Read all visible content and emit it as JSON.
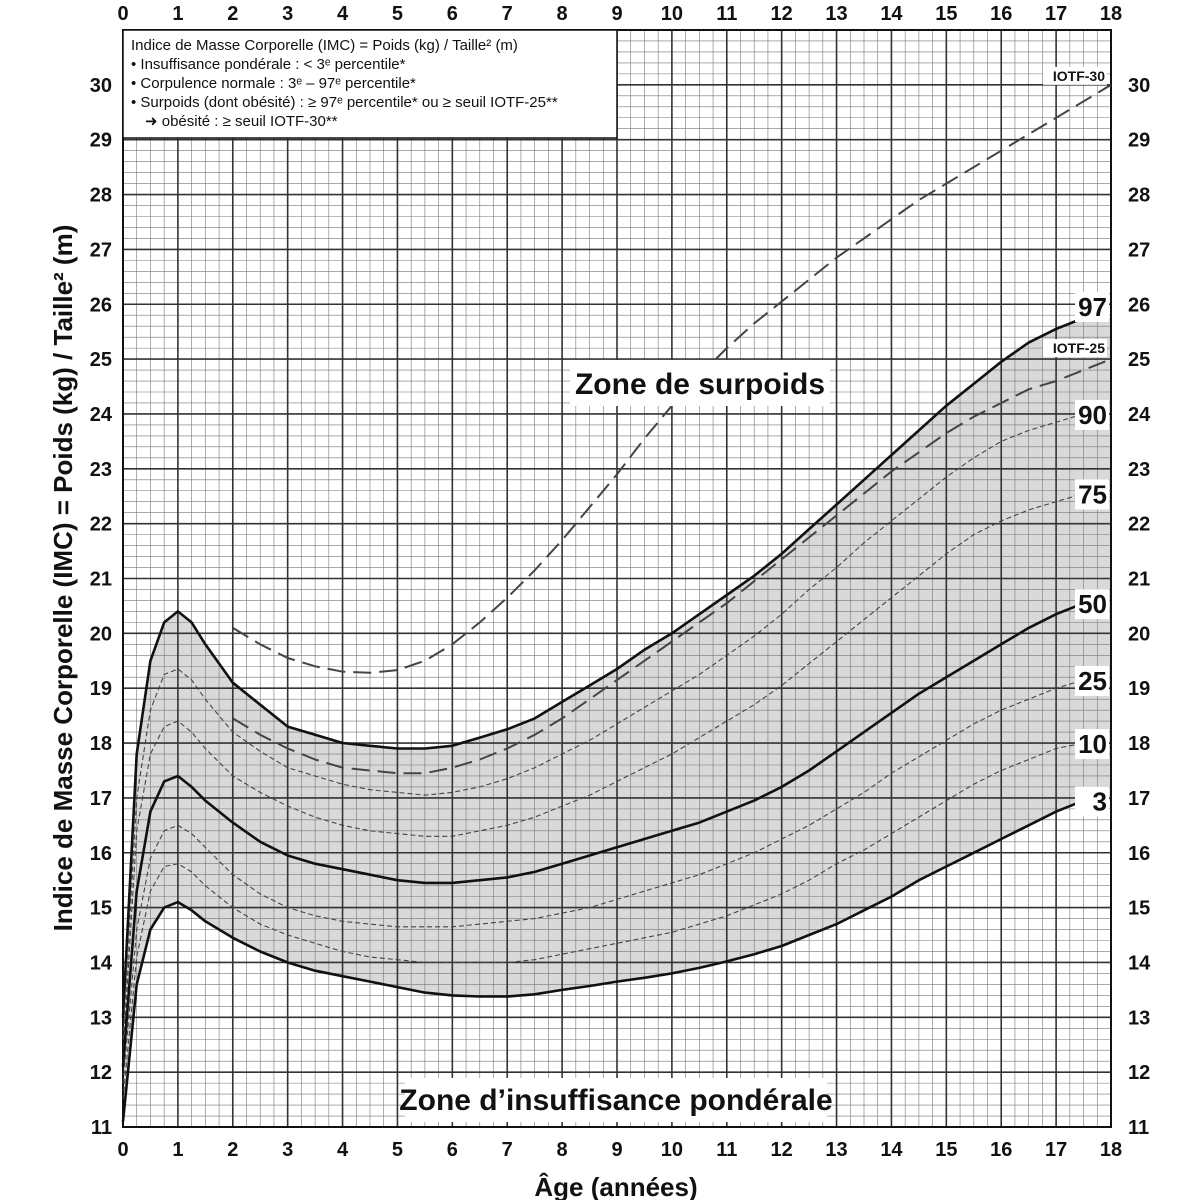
{
  "chart_data": {
    "type": "line",
    "xlabel": "Âge (années)",
    "ylabel": "Indice de Masse Corporelle (IMC) = Poids (kg) / Taille² (m)",
    "xlim": [
      0,
      18
    ],
    "ylim": [
      11,
      31
    ],
    "x_ticks": [
      0,
      1,
      2,
      3,
      4,
      5,
      6,
      7,
      8,
      9,
      10,
      11,
      12,
      13,
      14,
      15,
      16,
      17,
      18
    ],
    "y_ticks": [
      11,
      12,
      13,
      14,
      15,
      16,
      17,
      18,
      19,
      20,
      21,
      22,
      23,
      24,
      25,
      26,
      27,
      28,
      29,
      30
    ],
    "grid": true,
    "minor_grid_x": 0.25,
    "minor_grid_y": 0.2,
    "legend": {
      "placement": "top-left",
      "lines": [
        "Indice de Masse Corporelle (IMC) = Poids (kg) / Taille² (m)",
        "• Insuffisance pondérale : < 3ᵉ percentile*",
        "• Corpulence normale : 3ᵉ – 97ᵉ percentile*",
        "• Surpoids (dont obésité) : ≥ 97ᵉ percentile* ou ≥ seuil IOTF-25**",
        "➜ obésité : ≥ seuil IOTF-30**"
      ]
    },
    "annotations": {
      "zone_overweight": "Zone de surpoids",
      "zone_underweight": "Zone d’insuffisance pondérale"
    },
    "shaded_band": {
      "between": [
        "3",
        "97"
      ],
      "color": "#d9d9d9"
    },
    "series": [
      {
        "name": "97",
        "style": "solid-thick",
        "label": "97",
        "x": [
          0,
          0.25,
          0.5,
          0.75,
          1,
          1.25,
          1.5,
          2,
          2.5,
          3,
          3.5,
          4,
          4.5,
          5,
          5.5,
          6,
          6.5,
          7,
          7.5,
          8,
          8.5,
          9,
          9.5,
          10,
          10.5,
          11,
          11.5,
          12,
          12.5,
          13,
          13.5,
          14,
          14.5,
          15,
          15.5,
          16,
          16.5,
          17,
          17.5
        ],
        "y": [
          13.0,
          17.8,
          19.5,
          20.2,
          20.4,
          20.2,
          19.8,
          19.1,
          18.7,
          18.3,
          18.15,
          18.0,
          17.95,
          17.9,
          17.9,
          17.95,
          18.1,
          18.25,
          18.45,
          18.75,
          19.05,
          19.35,
          19.7,
          20.0,
          20.35,
          20.7,
          21.05,
          21.45,
          21.9,
          22.35,
          22.8,
          23.25,
          23.7,
          24.15,
          24.55,
          24.95,
          25.3,
          25.55,
          25.75
        ]
      },
      {
        "name": "90",
        "style": "dashed-thin",
        "label": "90",
        "x": [
          0,
          0.25,
          0.5,
          0.75,
          1,
          1.25,
          1.5,
          2,
          2.5,
          3,
          3.5,
          4,
          4.5,
          5,
          5.5,
          6,
          6.5,
          7,
          7.5,
          8,
          8.5,
          9,
          9.5,
          10,
          10.5,
          11,
          11.5,
          12,
          12.5,
          13,
          13.5,
          14,
          14.5,
          15,
          15.5,
          16,
          16.5,
          17,
          17.5
        ],
        "y": [
          12.6,
          17.0,
          18.6,
          19.25,
          19.35,
          19.15,
          18.8,
          18.2,
          17.85,
          17.55,
          17.4,
          17.25,
          17.15,
          17.1,
          17.05,
          17.1,
          17.2,
          17.35,
          17.55,
          17.8,
          18.05,
          18.35,
          18.65,
          18.95,
          19.25,
          19.6,
          19.95,
          20.35,
          20.8,
          21.2,
          21.65,
          22.05,
          22.45,
          22.85,
          23.2,
          23.5,
          23.7,
          23.85,
          24.0
        ]
      },
      {
        "name": "75",
        "style": "dashed-thin",
        "label": "75",
        "x": [
          0,
          0.25,
          0.5,
          0.75,
          1,
          1.25,
          1.5,
          2,
          2.5,
          3,
          3.5,
          4,
          4.5,
          5,
          5.5,
          6,
          6.5,
          7,
          7.5,
          8,
          8.5,
          9,
          9.5,
          10,
          10.5,
          11,
          11.5,
          12,
          12.5,
          13,
          13.5,
          14,
          14.5,
          15,
          15.5,
          16,
          16.5,
          17,
          17.5
        ],
        "y": [
          12.3,
          16.4,
          17.8,
          18.3,
          18.4,
          18.2,
          17.9,
          17.4,
          17.1,
          16.85,
          16.65,
          16.5,
          16.4,
          16.35,
          16.3,
          16.3,
          16.4,
          16.5,
          16.65,
          16.85,
          17.05,
          17.3,
          17.55,
          17.8,
          18.1,
          18.4,
          18.7,
          19.05,
          19.45,
          19.85,
          20.25,
          20.65,
          21.05,
          21.45,
          21.8,
          22.05,
          22.25,
          22.4,
          22.55
        ]
      },
      {
        "name": "50",
        "style": "solid-thick",
        "label": "50",
        "x": [
          0,
          0.25,
          0.5,
          0.75,
          1,
          1.25,
          1.5,
          2,
          2.5,
          3,
          3.5,
          4,
          4.5,
          5,
          5.5,
          6,
          6.5,
          7,
          7.5,
          8,
          8.5,
          9,
          9.5,
          10,
          10.5,
          11,
          11.5,
          12,
          12.5,
          13,
          13.5,
          14,
          14.5,
          15,
          15.5,
          16,
          16.5,
          17,
          17.5
        ],
        "y": [
          12.1,
          15.3,
          16.75,
          17.3,
          17.4,
          17.2,
          16.95,
          16.55,
          16.2,
          15.95,
          15.8,
          15.7,
          15.6,
          15.5,
          15.45,
          15.45,
          15.5,
          15.55,
          15.65,
          15.8,
          15.95,
          16.1,
          16.25,
          16.4,
          16.55,
          16.75,
          16.95,
          17.2,
          17.5,
          17.85,
          18.2,
          18.55,
          18.9,
          19.2,
          19.5,
          19.8,
          20.1,
          20.35,
          20.55
        ]
      },
      {
        "name": "25",
        "style": "dashed-thin",
        "label": "25",
        "x": [
          0,
          0.25,
          0.5,
          0.75,
          1,
          1.25,
          1.5,
          2,
          2.5,
          3,
          3.5,
          4,
          4.5,
          5,
          5.5,
          6,
          6.5,
          7,
          7.5,
          8,
          8.5,
          9,
          9.5,
          10,
          10.5,
          11,
          11.5,
          12,
          12.5,
          13,
          13.5,
          14,
          14.5,
          15,
          15.5,
          16,
          16.5,
          17,
          17.5
        ],
        "y": [
          11.8,
          14.6,
          15.9,
          16.4,
          16.5,
          16.35,
          16.1,
          15.6,
          15.25,
          15.0,
          14.85,
          14.75,
          14.7,
          14.65,
          14.65,
          14.65,
          14.7,
          14.75,
          14.8,
          14.9,
          15.0,
          15.15,
          15.3,
          15.45,
          15.6,
          15.8,
          16.0,
          16.25,
          16.5,
          16.8,
          17.1,
          17.45,
          17.75,
          18.05,
          18.35,
          18.6,
          18.8,
          19.0,
          19.15
        ]
      },
      {
        "name": "10",
        "style": "dashed-thin",
        "label": "10",
        "x": [
          0,
          0.25,
          0.5,
          0.75,
          1,
          1.25,
          1.5,
          2,
          2.5,
          3,
          3.5,
          4,
          4.5,
          5,
          5.5,
          6,
          6.5,
          7,
          7.5,
          8,
          8.5,
          9,
          9.5,
          10,
          10.5,
          11,
          11.5,
          12,
          12.5,
          13,
          13.5,
          14,
          14.5,
          15,
          15.5,
          16,
          16.5,
          17,
          17.5
        ],
        "y": [
          11.5,
          14.1,
          15.3,
          15.75,
          15.8,
          15.65,
          15.4,
          15.0,
          14.7,
          14.5,
          14.35,
          14.2,
          14.1,
          14.05,
          14.0,
          14.0,
          14.0,
          14.0,
          14.05,
          14.15,
          14.25,
          14.35,
          14.45,
          14.55,
          14.7,
          14.85,
          15.05,
          15.25,
          15.5,
          15.8,
          16.05,
          16.35,
          16.65,
          16.95,
          17.25,
          17.5,
          17.7,
          17.9,
          18.0
        ]
      },
      {
        "name": "3",
        "style": "solid-thick",
        "label": "3",
        "x": [
          0,
          0.25,
          0.5,
          0.75,
          1,
          1.25,
          1.5,
          2,
          2.5,
          3,
          3.5,
          4,
          4.5,
          5,
          5.5,
          6,
          6.5,
          7,
          7.5,
          8,
          8.5,
          9,
          9.5,
          10,
          10.5,
          11,
          11.5,
          12,
          12.5,
          13,
          13.5,
          14,
          14.5,
          15,
          15.5,
          16,
          16.5,
          17,
          17.5
        ],
        "y": [
          11.1,
          13.6,
          14.6,
          15.0,
          15.1,
          14.95,
          14.75,
          14.45,
          14.2,
          14.0,
          13.85,
          13.75,
          13.65,
          13.55,
          13.45,
          13.4,
          13.38,
          13.38,
          13.42,
          13.5,
          13.57,
          13.65,
          13.72,
          13.8,
          13.9,
          14.02,
          14.15,
          14.3,
          14.5,
          14.7,
          14.95,
          15.2,
          15.5,
          15.75,
          16.0,
          16.25,
          16.5,
          16.75,
          16.95
        ]
      },
      {
        "name": "IOTF-25",
        "style": "dashed-long",
        "label": "IOTF-25",
        "x": [
          2,
          2.5,
          3,
          3.5,
          4,
          4.5,
          5,
          5.5,
          6,
          6.5,
          7,
          7.5,
          8,
          8.5,
          9,
          9.5,
          10,
          10.5,
          11,
          11.5,
          12,
          12.5,
          13,
          13.5,
          14,
          14.5,
          15,
          15.5,
          16,
          16.5,
          17,
          17.5,
          18
        ],
        "y": [
          18.45,
          18.15,
          17.9,
          17.7,
          17.55,
          17.5,
          17.45,
          17.45,
          17.55,
          17.7,
          17.9,
          18.15,
          18.45,
          18.8,
          19.15,
          19.5,
          19.85,
          20.2,
          20.55,
          20.95,
          21.35,
          21.75,
          22.15,
          22.55,
          22.95,
          23.3,
          23.65,
          23.95,
          24.2,
          24.45,
          24.6,
          24.8,
          25.0
        ]
      },
      {
        "name": "IOTF-30",
        "style": "dashed-long",
        "label": "IOTF-30",
        "x": [
          2,
          2.5,
          3,
          3.5,
          4,
          4.5,
          5,
          5.5,
          6,
          6.5,
          7,
          7.5,
          8,
          8.5,
          9,
          9.5,
          10,
          10.5,
          11,
          11.5,
          12,
          12.5,
          13,
          13.5,
          14,
          14.5,
          15,
          15.5,
          16,
          16.5,
          17,
          17.5,
          18
        ],
        "y": [
          20.1,
          19.8,
          19.55,
          19.4,
          19.3,
          19.28,
          19.33,
          19.5,
          19.8,
          20.2,
          20.65,
          21.15,
          21.7,
          22.3,
          22.9,
          23.55,
          24.15,
          24.7,
          25.2,
          25.65,
          26.05,
          26.45,
          26.85,
          27.2,
          27.55,
          27.9,
          28.2,
          28.5,
          28.8,
          29.1,
          29.4,
          29.7,
          30.0
        ]
      }
    ]
  }
}
